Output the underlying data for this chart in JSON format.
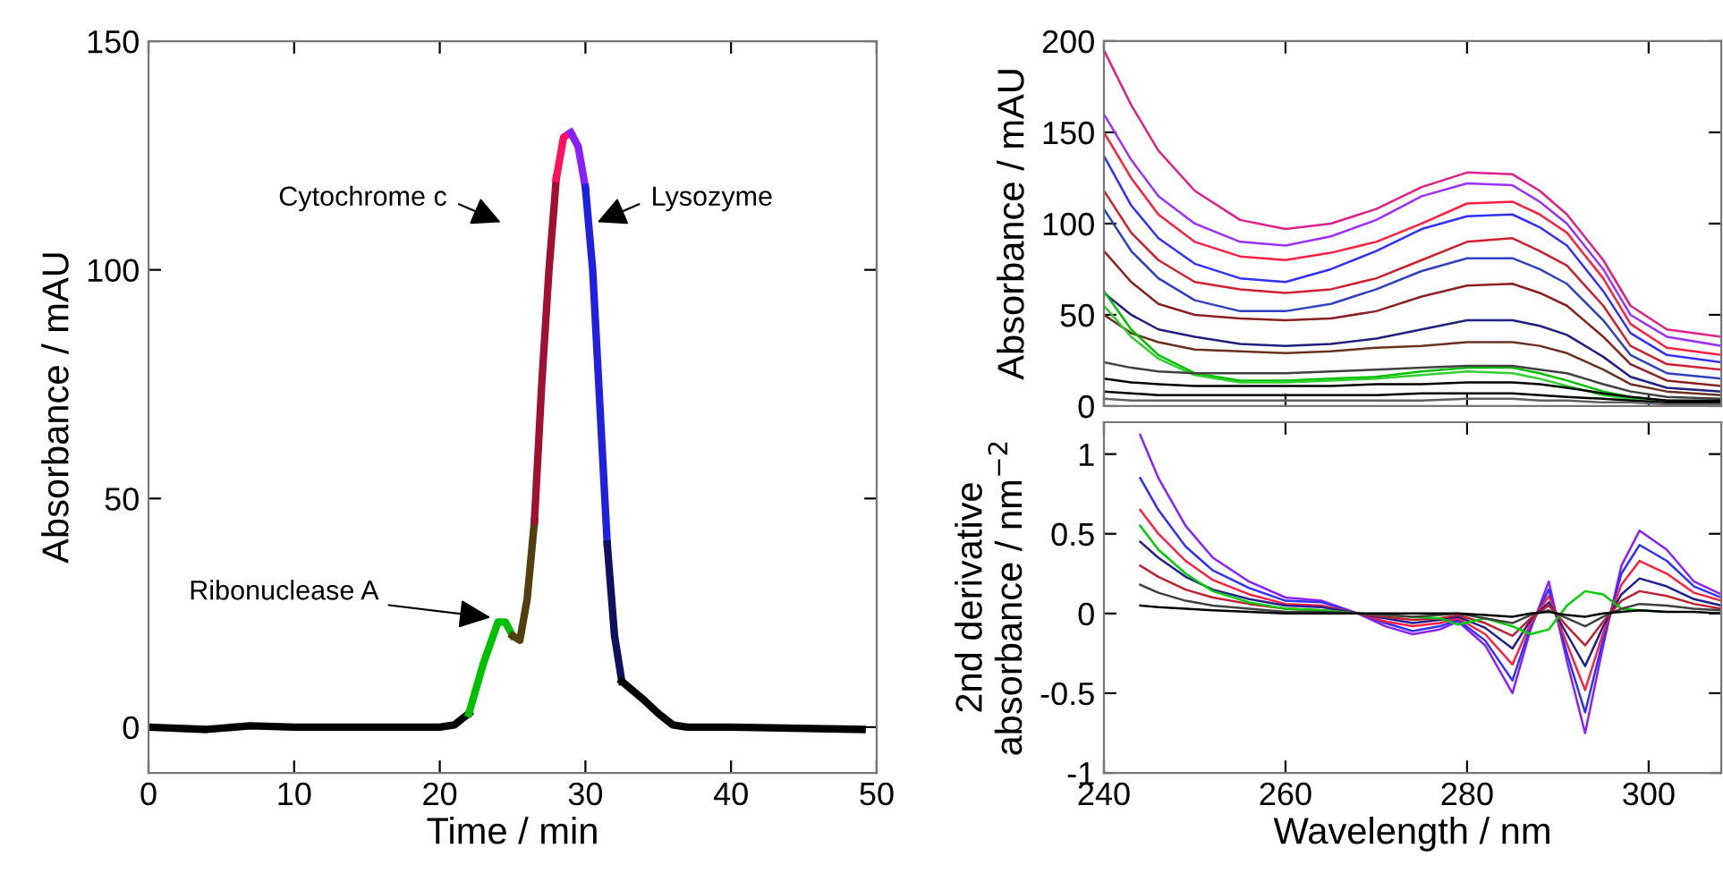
{
  "chart_data": [
    {
      "type": "line",
      "xlabel": "Time / min",
      "ylabel": "Absorbance / mAU",
      "xlim": [
        0,
        50
      ],
      "ylim": [
        -10,
        150
      ],
      "xticks": [
        0,
        10,
        20,
        30,
        40,
        50
      ],
      "yticks": [
        0,
        50,
        100,
        150
      ],
      "grid": false,
      "legend": false,
      "series": [
        {
          "color": "#000000",
          "x": [
            0,
            4,
            7,
            10,
            15,
            20,
            21,
            22
          ],
          "values": [
            0,
            -0.5,
            0.3,
            0,
            0,
            0,
            0.5,
            3
          ]
        },
        {
          "color": "#00c000",
          "x": [
            22,
            23,
            24,
            24.5,
            25
          ],
          "values": [
            3,
            14,
            23,
            23,
            20
          ]
        },
        {
          "color": "#504010",
          "x": [
            25,
            25.5,
            26,
            26.5
          ],
          "values": [
            20,
            19,
            28,
            45
          ]
        },
        {
          "color": "#a01030",
          "x": [
            26.5,
            27,
            27.5,
            28
          ],
          "values": [
            45,
            75,
            100,
            120
          ]
        },
        {
          "color": "#ff1060",
          "x": [
            28,
            28.5,
            29
          ],
          "values": [
            120,
            129,
            130
          ]
        },
        {
          "color": "#8a20ff",
          "x": [
            29,
            29.5,
            30
          ],
          "values": [
            130,
            127,
            118
          ]
        },
        {
          "color": "#2020e0",
          "x": [
            30,
            30.5,
            31,
            31.5
          ],
          "values": [
            118,
            100,
            70,
            40
          ]
        },
        {
          "color": "#101060",
          "x": [
            31.5,
            32,
            32.5
          ],
          "values": [
            40,
            20,
            10
          ]
        },
        {
          "color": "#000000",
          "x": [
            32.5,
            34,
            35,
            36,
            37,
            40,
            49
          ],
          "values": [
            10,
            6,
            3,
            0.5,
            0,
            0,
            -0.5
          ]
        }
      ],
      "annotations": [
        {
          "text": "Ribonuclease A",
          "x": 23.5,
          "y": 24
        },
        "Cytochrome c",
        "Lysozyme"
      ]
    },
    {
      "type": "line",
      "ylabel": "Absorbance / mAU",
      "xlim": [
        240,
        308
      ],
      "ylim": [
        0,
        200
      ],
      "xticks": [
        240,
        260,
        280,
        300
      ],
      "yticks": [
        0,
        50,
        100,
        150,
        200
      ],
      "tick_labels": "y",
      "grid": false,
      "legend": false,
      "x": [
        240,
        243,
        246,
        250,
        255,
        260,
        265,
        270,
        275,
        280,
        285,
        288,
        291,
        295,
        298,
        302,
        308
      ],
      "series": [
        {
          "color": "#e0208a",
          "values": [
            195,
            165,
            140,
            118,
            102,
            97,
            100,
            108,
            120,
            128,
            127,
            118,
            105,
            80,
            55,
            42,
            38
          ]
        },
        {
          "color": "#9b30ff",
          "values": [
            160,
            135,
            115,
            100,
            90,
            88,
            93,
            102,
            115,
            122,
            121,
            112,
            100,
            75,
            50,
            38,
            33
          ]
        },
        {
          "color": "#ff2040",
          "values": [
            150,
            125,
            105,
            90,
            82,
            80,
            84,
            90,
            100,
            111,
            112,
            105,
            95,
            70,
            45,
            32,
            28
          ]
        },
        {
          "color": "#3030ff",
          "values": [
            137,
            110,
            92,
            78,
            70,
            68,
            75,
            85,
            97,
            104,
            105,
            98,
            88,
            63,
            40,
            28,
            24
          ]
        },
        {
          "color": "#d02030",
          "values": [
            118,
            95,
            80,
            68,
            64,
            62,
            64,
            70,
            80,
            90,
            92,
            85,
            77,
            55,
            33,
            23,
            20
          ]
        },
        {
          "color": "#3040c0",
          "values": [
            108,
            85,
            70,
            58,
            52,
            52,
            56,
            64,
            74,
            81,
            81,
            75,
            67,
            47,
            28,
            18,
            15
          ]
        },
        {
          "color": "#8b2020",
          "values": [
            85,
            68,
            56,
            50,
            48,
            47,
            48,
            52,
            60,
            66,
            67,
            62,
            55,
            38,
            23,
            14,
            11
          ]
        },
        {
          "color": "#202080",
          "values": [
            62,
            50,
            42,
            38,
            34,
            33,
            34,
            37,
            42,
            47,
            47,
            44,
            39,
            27,
            16,
            10,
            8
          ]
        },
        {
          "color": "#6b3020",
          "values": [
            50,
            40,
            35,
            31,
            30,
            29,
            30,
            32,
            33,
            35,
            35,
            33,
            29,
            20,
            12,
            8,
            6
          ]
        },
        {
          "color": "#00c000",
          "values": [
            63,
            42,
            28,
            18,
            14,
            14,
            15,
            16,
            19,
            21,
            21,
            18,
            14,
            8,
            5,
            3,
            2
          ]
        },
        {
          "color": "#30d030",
          "values": [
            55,
            38,
            26,
            17,
            13,
            13,
            14,
            15,
            17,
            19,
            18,
            15,
            11,
            6,
            4,
            2,
            2
          ]
        },
        {
          "color": "#404040",
          "values": [
            24,
            21,
            19,
            18,
            18,
            18,
            19,
            20,
            21,
            22,
            22,
            20,
            18,
            12,
            8,
            5,
            4
          ]
        },
        {
          "color": "#000000",
          "values": [
            15,
            13,
            12,
            11,
            11,
            11,
            11,
            12,
            12,
            13,
            13,
            12,
            10,
            7,
            5,
            3,
            3
          ]
        },
        {
          "color": "#000000",
          "values": [
            8,
            7,
            6,
            6,
            6,
            6,
            6,
            6,
            7,
            7,
            7,
            6,
            5,
            4,
            3,
            2,
            2
          ]
        },
        {
          "color": "#606060",
          "values": [
            4,
            3,
            3,
            3,
            3,
            3,
            3,
            3,
            3,
            4,
            4,
            3,
            3,
            2,
            2,
            1,
            1
          ]
        }
      ]
    },
    {
      "type": "line",
      "xlabel": "Wavelength / nm",
      "ylabel": "2nd derivative\nabsorbance / nm$^{−2}$",
      "xlim": [
        240,
        308
      ],
      "ylim": [
        -1,
        1.2
      ],
      "xticks": [
        240,
        260,
        280,
        300
      ],
      "yticks": [
        -1,
        -0.5,
        0,
        0.5,
        1
      ],
      "grid": false,
      "legend": false,
      "x": [
        244,
        246,
        249,
        252,
        256,
        260,
        264,
        268,
        271,
        274,
        277,
        279,
        282,
        285,
        287,
        289,
        291,
        293,
        295,
        297,
        299,
        302,
        305,
        308
      ],
      "series": [
        {
          "color": "#8a20ff",
          "values": [
            1.12,
            0.85,
            0.55,
            0.35,
            0.2,
            0.1,
            0.08,
            0,
            -0.08,
            -0.13,
            -0.1,
            -0.05,
            -0.2,
            -0.5,
            -0.1,
            0.2,
            -0.3,
            -0.75,
            -0.2,
            0.3,
            0.52,
            0.4,
            0.2,
            0.12
          ]
        },
        {
          "color": "#3030ff",
          "values": [
            0.85,
            0.65,
            0.42,
            0.27,
            0.16,
            0.08,
            0.07,
            0,
            -0.06,
            -0.11,
            -0.08,
            -0.04,
            -0.17,
            -0.42,
            -0.08,
            0.15,
            -0.25,
            -0.62,
            -0.16,
            0.25,
            0.43,
            0.33,
            0.17,
            0.1
          ]
        },
        {
          "color": "#ff2040",
          "values": [
            0.65,
            0.5,
            0.33,
            0.21,
            0.12,
            0.06,
            0.05,
            0,
            -0.05,
            -0.08,
            -0.06,
            -0.03,
            -0.13,
            -0.32,
            -0.06,
            0.11,
            -0.19,
            -0.48,
            -0.12,
            0.18,
            0.33,
            0.25,
            0.13,
            0.08
          ]
        },
        {
          "color": "#202090",
          "values": [
            0.45,
            0.35,
            0.23,
            0.15,
            0.09,
            0.05,
            0.04,
            0,
            -0.03,
            -0.06,
            -0.04,
            -0.02,
            -0.09,
            -0.22,
            -0.04,
            0.07,
            -0.13,
            -0.33,
            -0.08,
            0.12,
            0.22,
            0.17,
            0.09,
            0.05
          ]
        },
        {
          "color": "#c02030",
          "values": [
            0.3,
            0.23,
            0.15,
            0.1,
            0.06,
            0.03,
            0.02,
            0,
            -0.02,
            -0.04,
            -0.03,
            -0.01,
            -0.06,
            -0.14,
            -0.03,
            0.05,
            -0.08,
            -0.2,
            -0.05,
            0.08,
            0.14,
            0.11,
            0.06,
            0.03
          ]
        },
        {
          "color": "#00d000",
          "values": [
            0.55,
            0.4,
            0.25,
            0.14,
            0.07,
            0.03,
            0.02,
            0,
            -0.01,
            -0.02,
            -0.03,
            -0.07,
            -0.03,
            -0.08,
            -0.13,
            -0.1,
            0.05,
            0.14,
            0.12,
            0.03,
            0.02,
            0.01,
            null,
            null
          ]
        },
        {
          "color": "#404040",
          "values": [
            0.18,
            0.13,
            0.08,
            0.05,
            0.03,
            0.01,
            0.01,
            0,
            -0.01,
            -0.02,
            -0.01,
            0,
            -0.03,
            -0.06,
            -0.01,
            0.02,
            -0.03,
            -0.08,
            -0.02,
            0.03,
            0.06,
            0.05,
            0.03,
            0.02
          ]
        },
        {
          "color": "#000000",
          "values": [
            0.05,
            0.04,
            0.03,
            0.02,
            0.01,
            0,
            0,
            0,
            0,
            0,
            0,
            0,
            -0.01,
            -0.02,
            0,
            0.01,
            -0.01,
            -0.02,
            0,
            0.01,
            0.02,
            0.01,
            0.01,
            0
          ]
        }
      ]
    }
  ]
}
